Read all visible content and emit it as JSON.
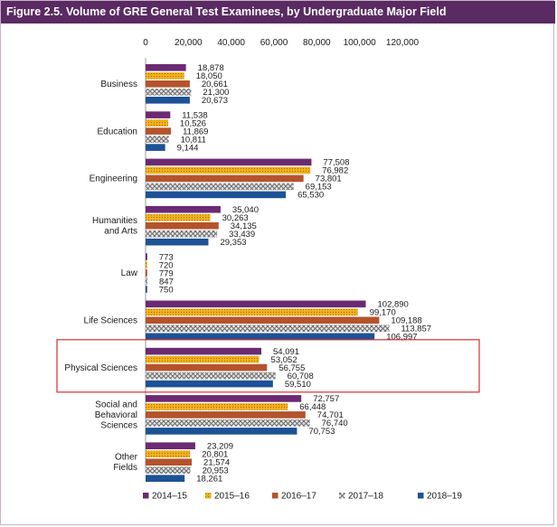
{
  "figure": {
    "title": "Figure 2.5. Volume of GRE General Test Examinees, by Undergraduate Major Field"
  },
  "chart_data": {
    "type": "bar",
    "orientation": "horizontal",
    "title": "Figure 2.5. Volume of GRE General Test Examinees, by Undergraduate Major Field",
    "xlabel": "",
    "ylabel": "",
    "xlim": [
      0,
      120000
    ],
    "x_ticks": [
      "0",
      "20,000",
      "40,000",
      "60,000",
      "80,000",
      "100,000",
      "120,000"
    ],
    "x_tick_values": [
      0,
      20000,
      40000,
      60000,
      80000,
      100000,
      120000
    ],
    "grid": false,
    "legend_position": "bottom",
    "highlighted_category": "Physical Sciences",
    "categories": [
      "Business",
      "Education",
      "Engineering",
      "Humanities and Arts",
      "Law",
      "Life Sciences",
      "Physical Sciences",
      "Social and Behavioral Sciences",
      "Other Fields"
    ],
    "category_display": [
      [
        "Business"
      ],
      [
        "Education"
      ],
      [
        "Engineering"
      ],
      [
        "Humanities",
        "and Arts"
      ],
      [
        "Law"
      ],
      [
        "Life Sciences"
      ],
      [
        "Physical Sciences"
      ],
      [
        "Social and",
        "Behavioral",
        "Sciences"
      ],
      [
        "Other",
        "Fields"
      ]
    ],
    "series": [
      {
        "name": "2014–15",
        "color": "#6b2a72",
        "pattern": "solid",
        "values": [
          18878,
          11538,
          77508,
          35040,
          773,
          102890,
          54091,
          72757,
          23209
        ],
        "labels": [
          "18,878",
          "11,538",
          "77,508",
          "35,040",
          "773",
          "102,890",
          "54,091",
          "72,757",
          "23,209"
        ]
      },
      {
        "name": "2015–16",
        "color": "#f2b01e",
        "pattern": "dots",
        "values": [
          18050,
          10526,
          76982,
          30263,
          720,
          99170,
          53052,
          66448,
          20801
        ],
        "labels": [
          "18,050",
          "10,526",
          "76,982",
          "30,263",
          "720",
          "99,170",
          "53,052",
          "66,448",
          "20,801"
        ]
      },
      {
        "name": "2016–17",
        "color": "#b5532c",
        "pattern": "solid",
        "values": [
          20661,
          11869,
          73801,
          34135,
          779,
          109188,
          56755,
          74701,
          21574
        ],
        "labels": [
          "20,661",
          "11,869",
          "73,801",
          "34,135",
          "779",
          "109,188",
          "56,755",
          "74,701",
          "21,574"
        ]
      },
      {
        "name": "2017–18",
        "color": "#8a8a8a",
        "pattern": "crosshatch",
        "values": [
          21300,
          10811,
          69153,
          33439,
          847,
          113857,
          60708,
          76740,
          20953
        ],
        "labels": [
          "21,300",
          "10,811",
          "69,153",
          "33,439",
          "847",
          "113,857",
          "60,708",
          "76,740",
          "20,953"
        ]
      },
      {
        "name": "2018–19",
        "color": "#1d5296",
        "pattern": "solid",
        "values": [
          20673,
          9144,
          65530,
          29353,
          750,
          106997,
          59510,
          70753,
          18261
        ],
        "labels": [
          "20,673",
          "9,144",
          "65,530",
          "29,353",
          "750",
          "106,997",
          "59,510",
          "70,753",
          "18,261"
        ]
      }
    ]
  },
  "colors": {
    "title_bar": "#5a2a63",
    "highlight_box": "#d9302c"
  }
}
